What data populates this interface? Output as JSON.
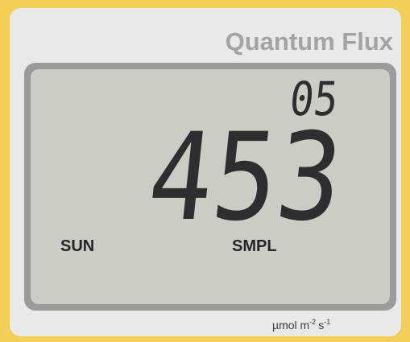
{
  "brand": "Quantum Flux",
  "sample_number": "05",
  "reading": "453",
  "mode": "SUN",
  "status": "SMPL",
  "units": {
    "base": "µmol m",
    "exp1": "-2",
    "mid": "s",
    "exp2": "-1"
  }
}
